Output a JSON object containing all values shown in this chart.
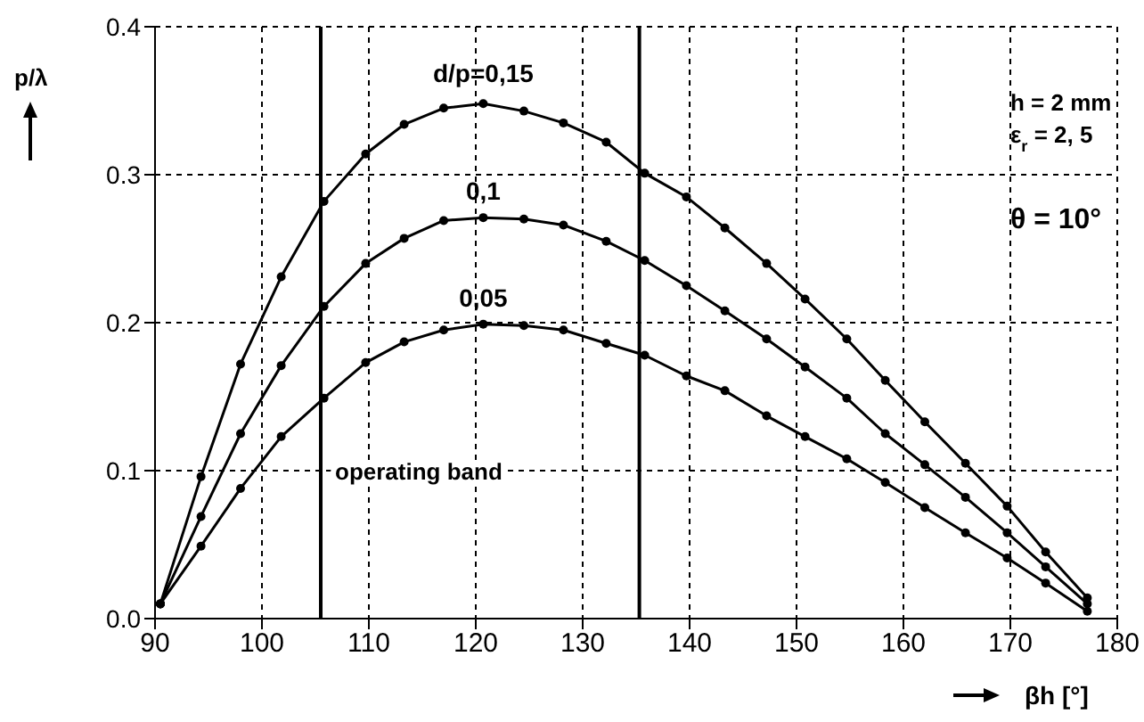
{
  "chart_data": {
    "type": "line",
    "xlabel": "βh [°]",
    "ylabel": "p/λ",
    "x": [
      90.5,
      94.3,
      98,
      101.8,
      105.8,
      109.7,
      113.3,
      117,
      120.7,
      124.5,
      128.2,
      132.2,
      135.8,
      139.7,
      143.3,
      147.2,
      150.8,
      154.7,
      158.3,
      162,
      165.8,
      169.7,
      173.3,
      177.2
    ],
    "series": [
      {
        "name": "d/p=0,15",
        "color": "#000000",
        "values": [
          0.01,
          0.096,
          0.172,
          0.231,
          0.282,
          0.314,
          0.334,
          0.345,
          0.348,
          0.343,
          0.335,
          0.322,
          0.301,
          0.285,
          0.264,
          0.24,
          0.216,
          0.189,
          0.161,
          0.133,
          0.105,
          0.076,
          0.045,
          0.014
        ]
      },
      {
        "name": "0,1",
        "color": "#000000",
        "values": [
          0.01,
          0.069,
          0.125,
          0.171,
          0.211,
          0.24,
          0.257,
          0.269,
          0.271,
          0.27,
          0.266,
          0.255,
          0.242,
          0.225,
          0.208,
          0.189,
          0.17,
          0.149,
          0.125,
          0.104,
          0.082,
          0.058,
          0.035,
          0.01
        ]
      },
      {
        "name": "0,05",
        "color": "#000000",
        "values": [
          0.01,
          0.049,
          0.088,
          0.123,
          0.149,
          0.173,
          0.187,
          0.195,
          0.199,
          0.198,
          0.195,
          0.186,
          0.178,
          0.164,
          0.154,
          0.137,
          0.123,
          0.108,
          0.092,
          0.075,
          0.058,
          0.041,
          0.024,
          0.005
        ]
      }
    ],
    "xlim": [
      90,
      180
    ],
    "xticks": [
      90,
      100,
      110,
      120,
      130,
      140,
      150,
      160,
      170,
      180
    ],
    "ylim": [
      0,
      0.4
    ],
    "yticks": [
      {
        "value": 0,
        "label": "0.0"
      },
      0.1,
      0.2,
      0.3,
      0.4
    ],
    "ref_lines": [
      {
        "axis": "x",
        "value": 105.5,
        "label": "operating band",
        "color": "#000000"
      },
      {
        "axis": "x",
        "value": 135.3,
        "color": "#000000"
      }
    ],
    "annotations": [
      "h = 2 mm",
      "ε$_{r}$ = 2, 5",
      "θ = 10°"
    ],
    "grid": true,
    "marker": "circle",
    "line_style": "solid"
  }
}
